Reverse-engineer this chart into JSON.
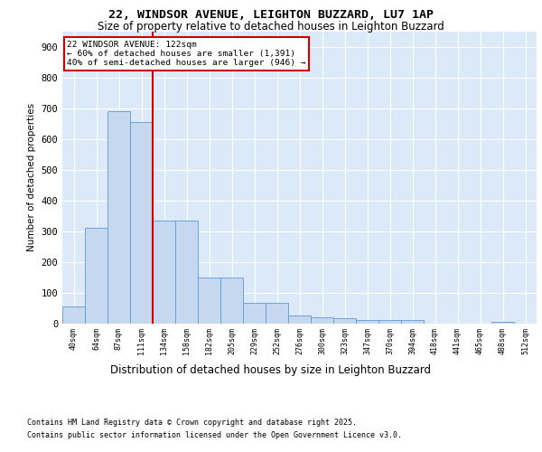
{
  "title1": "22, WINDSOR AVENUE, LEIGHTON BUZZARD, LU7 1AP",
  "title2": "Size of property relative to detached houses in Leighton Buzzard",
  "xlabel": "Distribution of detached houses by size in Leighton Buzzard",
  "ylabel": "Number of detached properties",
  "categories": [
    "40sqm",
    "64sqm",
    "87sqm",
    "111sqm",
    "134sqm",
    "158sqm",
    "182sqm",
    "205sqm",
    "229sqm",
    "252sqm",
    "276sqm",
    "300sqm",
    "323sqm",
    "347sqm",
    "370sqm",
    "394sqm",
    "418sqm",
    "441sqm",
    "465sqm",
    "488sqm",
    "512sqm"
  ],
  "values": [
    55,
    310,
    690,
    655,
    335,
    335,
    150,
    150,
    65,
    65,
    25,
    20,
    15,
    10,
    10,
    10,
    0,
    0,
    0,
    5,
    0
  ],
  "bar_color": "#c5d8f0",
  "bar_edge_color": "#5b9bd5",
  "vline_x": 3.5,
  "vline_color": "#cc0000",
  "annotation_title": "22 WINDSOR AVENUE: 122sqm",
  "annotation_line1": "← 60% of detached houses are smaller (1,391)",
  "annotation_line2": "40% of semi-detached houses are larger (946) →",
  "annotation_box_color": "white",
  "annotation_box_edge": "#cc0000",
  "footnote1": "Contains HM Land Registry data © Crown copyright and database right 2025.",
  "footnote2": "Contains public sector information licensed under the Open Government Licence v3.0.",
  "plot_bg_color": "#dce9f8",
  "ylim": [
    0,
    950
  ],
  "yticks": [
    0,
    100,
    200,
    300,
    400,
    500,
    600,
    700,
    800,
    900
  ]
}
